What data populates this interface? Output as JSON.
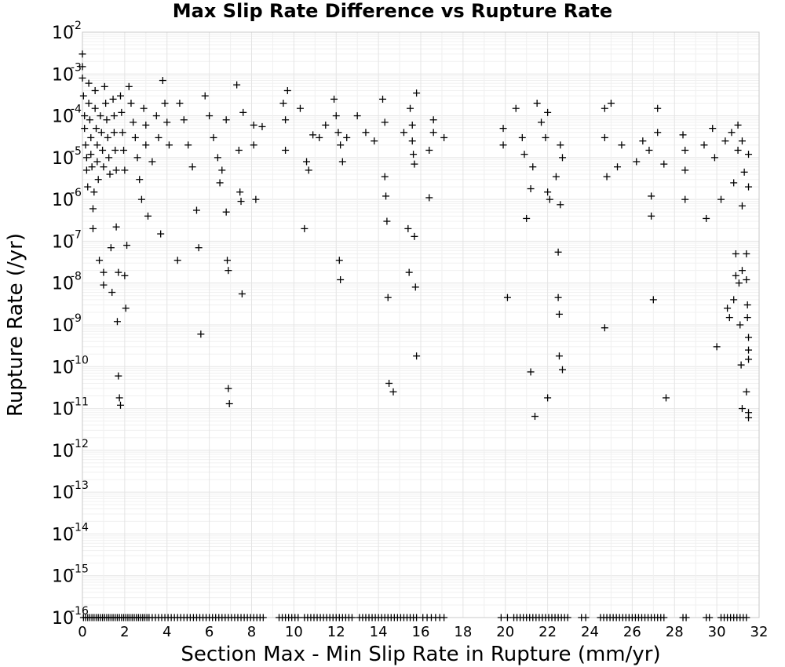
{
  "chart_data": {
    "type": "scatter",
    "title": "Max Slip Rate Difference vs Rupture Rate",
    "xlabel": "Section Max - Min Slip Rate in Rupture (mm/yr)",
    "ylabel": "Rupture Rate (/yr)",
    "xlim": [
      0,
      32
    ],
    "ylim": [
      1e-16,
      0.01
    ],
    "yscale": "log",
    "grid": true,
    "marker": "+",
    "x_ticks": [
      "0",
      "2",
      "4",
      "6",
      "8",
      "10",
      "12",
      "14",
      "16",
      "18",
      "20",
      "22",
      "24",
      "26",
      "28",
      "30",
      "32"
    ],
    "y_ticks": [
      {
        "base": "10",
        "exp": "-2"
      },
      {
        "base": "10",
        "exp": "-3"
      },
      {
        "base": "10",
        "exp": "-4"
      },
      {
        "base": "10",
        "exp": "-5"
      },
      {
        "base": "10",
        "exp": "-6"
      },
      {
        "base": "10",
        "exp": "-7"
      },
      {
        "base": "10",
        "exp": "-8"
      },
      {
        "base": "10",
        "exp": "-9"
      },
      {
        "base": "10",
        "exp": "-10"
      },
      {
        "base": "10",
        "exp": "-11"
      },
      {
        "base": "10",
        "exp": "-12"
      },
      {
        "base": "10",
        "exp": "-13"
      },
      {
        "base": "10",
        "exp": "-14"
      },
      {
        "base": "10",
        "exp": "-15"
      },
      {
        "base": "10",
        "exp": "-16"
      }
    ],
    "points": [
      [
        0.0,
        0.003
      ],
      [
        0.0,
        0.0015
      ],
      [
        0.0,
        0.0008
      ],
      [
        0.05,
        0.0003
      ],
      [
        0.1,
        0.0001
      ],
      [
        0.1,
        5e-05
      ],
      [
        0.15,
        2e-05
      ],
      [
        0.2,
        1e-05
      ],
      [
        0.2,
        5e-06
      ],
      [
        0.25,
        2e-06
      ],
      [
        0.3,
        0.0006
      ],
      [
        0.3,
        0.0002
      ],
      [
        0.35,
        8e-05
      ],
      [
        0.4,
        3e-05
      ],
      [
        0.4,
        1.2e-05
      ],
      [
        0.45,
        6e-06
      ],
      [
        0.5,
        6e-07
      ],
      [
        0.5,
        2e-07
      ],
      [
        0.55,
        1.5e-06
      ],
      [
        0.6,
        0.0004
      ],
      [
        0.6,
        0.00015
      ],
      [
        0.65,
        5e-05
      ],
      [
        0.7,
        2e-05
      ],
      [
        0.7,
        8e-06
      ],
      [
        0.75,
        3e-06
      ],
      [
        0.8,
        3.5e-08
      ],
      [
        0.85,
        0.0001
      ],
      [
        0.9,
        4e-05
      ],
      [
        0.95,
        1.5e-05
      ],
      [
        1.0,
        6e-06
      ],
      [
        1.0,
        1.8e-08
      ],
      [
        1.0,
        9e-09
      ],
      [
        1.05,
        0.0005
      ],
      [
        1.1,
        0.0002
      ],
      [
        1.15,
        8e-05
      ],
      [
        1.2,
        3e-05
      ],
      [
        1.25,
        1e-05
      ],
      [
        1.3,
        4e-06
      ],
      [
        1.35,
        7e-08
      ],
      [
        1.4,
        6e-09
      ],
      [
        1.45,
        0.00025
      ],
      [
        1.5,
        0.0001
      ],
      [
        1.5,
        4e-05
      ],
      [
        1.55,
        1.5e-05
      ],
      [
        1.6,
        5e-06
      ],
      [
        1.6,
        2.2e-07
      ],
      [
        1.65,
        1.2e-09
      ],
      [
        1.7,
        6e-11
      ],
      [
        1.7,
        1.8e-08
      ],
      [
        1.75,
        1.8e-11
      ],
      [
        1.8,
        1.2e-11
      ],
      [
        1.8,
        0.0003
      ],
      [
        1.85,
        0.00012
      ],
      [
        1.9,
        4e-05
      ],
      [
        1.95,
        1.5e-05
      ],
      [
        2.0,
        5e-06
      ],
      [
        2.0,
        1.5e-08
      ],
      [
        2.05,
        2.5e-09
      ],
      [
        2.1,
        8e-08
      ],
      [
        2.2,
        0.0005
      ],
      [
        2.3,
        0.0002
      ],
      [
        2.4,
        7e-05
      ],
      [
        2.5,
        3e-05
      ],
      [
        2.6,
        1e-05
      ],
      [
        2.7,
        3e-06
      ],
      [
        2.8,
        1e-06
      ],
      [
        2.9,
        0.00015
      ],
      [
        3.0,
        6e-05
      ],
      [
        3.0,
        2e-05
      ],
      [
        3.1,
        4e-07
      ],
      [
        3.3,
        8e-06
      ],
      [
        3.5,
        0.0001
      ],
      [
        3.6,
        3e-05
      ],
      [
        3.7,
        1.5e-07
      ],
      [
        3.8,
        0.0007
      ],
      [
        3.9,
        0.0002
      ],
      [
        4.0,
        7e-05
      ],
      [
        4.1,
        2e-05
      ],
      [
        4.5,
        3.5e-08
      ],
      [
        4.6,
        0.0002
      ],
      [
        4.8,
        8e-05
      ],
      [
        5.0,
        2e-05
      ],
      [
        5.2,
        6e-06
      ],
      [
        5.4,
        5.5e-07
      ],
      [
        5.5,
        7e-08
      ],
      [
        5.6,
        6e-10
      ],
      [
        5.8,
        0.0003
      ],
      [
        6.0,
        0.0001
      ],
      [
        6.2,
        3e-05
      ],
      [
        6.4,
        1e-05
      ],
      [
        6.5,
        2.5e-06
      ],
      [
        6.6,
        5e-06
      ],
      [
        6.8,
        8e-05
      ],
      [
        6.8,
        5e-07
      ],
      [
        6.85,
        3.5e-08
      ],
      [
        6.9,
        2e-08
      ],
      [
        6.9,
        3e-11
      ],
      [
        6.95,
        1.3e-11
      ],
      [
        7.3,
        0.00055
      ],
      [
        7.4,
        1.5e-05
      ],
      [
        7.45,
        1.5e-06
      ],
      [
        7.5,
        9e-07
      ],
      [
        7.55,
        5.5e-09
      ],
      [
        7.6,
        0.00012
      ],
      [
        8.1,
        6e-05
      ],
      [
        8.1,
        2e-05
      ],
      [
        8.2,
        1e-06
      ],
      [
        8.5,
        5.5e-05
      ],
      [
        9.5,
        0.0002
      ],
      [
        9.6,
        8e-05
      ],
      [
        9.6,
        1.5e-05
      ],
      [
        9.7,
        0.0004
      ],
      [
        10.3,
        0.00015
      ],
      [
        10.5,
        2e-07
      ],
      [
        10.6,
        8e-06
      ],
      [
        10.7,
        5e-06
      ],
      [
        10.9,
        3.5e-05
      ],
      [
        11.2,
        3e-05
      ],
      [
        11.5,
        6e-05
      ],
      [
        11.9,
        0.00025
      ],
      [
        12.0,
        0.0001
      ],
      [
        12.1,
        4e-05
      ],
      [
        12.2,
        2e-05
      ],
      [
        12.15,
        3.5e-08
      ],
      [
        12.2,
        1.2e-08
      ],
      [
        12.3,
        8e-06
      ],
      [
        12.5,
        3e-05
      ],
      [
        13.0,
        0.0001
      ],
      [
        13.4,
        4e-05
      ],
      [
        13.8,
        2.5e-05
      ],
      [
        14.2,
        0.00025
      ],
      [
        14.3,
        7e-05
      ],
      [
        14.3,
        3.5e-06
      ],
      [
        14.35,
        1.2e-06
      ],
      [
        14.4,
        3e-07
      ],
      [
        14.45,
        4.5e-09
      ],
      [
        14.5,
        4e-11
      ],
      [
        14.7,
        2.5e-11
      ],
      [
        15.2,
        4e-05
      ],
      [
        15.4,
        2e-07
      ],
      [
        15.45,
        1.8e-08
      ],
      [
        15.5,
        0.00015
      ],
      [
        15.6,
        6e-05
      ],
      [
        15.6,
        2.5e-05
      ],
      [
        15.65,
        1.2e-05
      ],
      [
        15.7,
        7e-06
      ],
      [
        15.7,
        1.3e-07
      ],
      [
        15.75,
        8e-09
      ],
      [
        15.8,
        1.8e-10
      ],
      [
        15.8,
        0.00035
      ],
      [
        16.4,
        1.5e-05
      ],
      [
        16.4,
        1.1e-06
      ],
      [
        16.6,
        8e-05
      ],
      [
        16.6,
        4e-05
      ],
      [
        17.1,
        3e-05
      ],
      [
        19.9,
        5e-05
      ],
      [
        19.9,
        2e-05
      ],
      [
        20.1,
        4.5e-09
      ],
      [
        20.5,
        0.00015
      ],
      [
        20.8,
        3e-05
      ],
      [
        20.9,
        1.2e-05
      ],
      [
        21.0,
        3.5e-07
      ],
      [
        21.2,
        1.8e-06
      ],
      [
        21.2,
        7.5e-11
      ],
      [
        21.3,
        6e-06
      ],
      [
        21.4,
        6.5e-12
      ],
      [
        21.5,
        0.0002
      ],
      [
        21.7,
        7e-05
      ],
      [
        21.9,
        3e-05
      ],
      [
        22.0,
        0.00012
      ],
      [
        22.0,
        1.5e-06
      ],
      [
        22.0,
        1.8e-11
      ],
      [
        22.1,
        1e-06
      ],
      [
        22.4,
        3.5e-06
      ],
      [
        22.5,
        5.5e-08
      ],
      [
        22.5,
        4.5e-09
      ],
      [
        22.55,
        1.8e-09
      ],
      [
        22.55,
        1.8e-10
      ],
      [
        22.6,
        2e-05
      ],
      [
        22.7,
        8.5e-11
      ],
      [
        22.6,
        7.5e-07
      ],
      [
        22.7,
        1e-05
      ],
      [
        24.7,
        0.00015
      ],
      [
        24.7,
        3e-05
      ],
      [
        24.7,
        8.5e-10
      ],
      [
        24.8,
        3.5e-06
      ],
      [
        25.0,
        0.0002
      ],
      [
        25.3,
        6e-06
      ],
      [
        25.5,
        2e-05
      ],
      [
        26.2,
        8e-06
      ],
      [
        26.5,
        2.5e-05
      ],
      [
        26.8,
        1.5e-05
      ],
      [
        26.9,
        4e-07
      ],
      [
        26.9,
        1.2e-06
      ],
      [
        27.0,
        4e-09
      ],
      [
        27.2,
        0.00015
      ],
      [
        27.2,
        4e-05
      ],
      [
        27.5,
        7e-06
      ],
      [
        27.6,
        1.8e-11
      ],
      [
        28.4,
        3.5e-05
      ],
      [
        28.5,
        1.5e-05
      ],
      [
        28.5,
        1e-06
      ],
      [
        28.5,
        5e-06
      ],
      [
        29.4,
        2e-05
      ],
      [
        29.5,
        3.5e-07
      ],
      [
        29.8,
        5e-05
      ],
      [
        29.9,
        1e-05
      ],
      [
        30.0,
        3e-10
      ],
      [
        30.2,
        1e-06
      ],
      [
        30.4,
        2.5e-05
      ],
      [
        30.5,
        2.5e-09
      ],
      [
        30.6,
        1.5e-09
      ],
      [
        30.7,
        4e-05
      ],
      [
        30.8,
        2.5e-06
      ],
      [
        30.8,
        4e-09
      ],
      [
        30.9,
        1.5e-08
      ],
      [
        30.9,
        5e-08
      ],
      [
        31.0,
        6e-05
      ],
      [
        31.0,
        1.5e-05
      ],
      [
        31.05,
        1e-08
      ],
      [
        31.1,
        1e-09
      ],
      [
        31.15,
        1.1e-10
      ],
      [
        31.2,
        2e-08
      ],
      [
        31.2,
        7e-07
      ],
      [
        31.2,
        2.5e-05
      ],
      [
        31.2,
        1e-11
      ],
      [
        31.3,
        4.5e-06
      ],
      [
        31.4,
        5e-08
      ],
      [
        31.4,
        1.2e-08
      ],
      [
        31.4,
        2.5e-11
      ],
      [
        31.45,
        3e-09
      ],
      [
        31.45,
        1.5e-09
      ],
      [
        31.5,
        5e-10
      ],
      [
        31.5,
        2.5e-10
      ],
      [
        31.5,
        1.5e-10
      ],
      [
        31.5,
        8e-12
      ],
      [
        31.5,
        6e-12
      ],
      [
        31.5,
        2e-06
      ],
      [
        31.5,
        1.2e-05
      ]
    ],
    "floor_points_x": [
      0.05,
      0.15,
      0.25,
      0.35,
      0.45,
      0.55,
      0.65,
      0.75,
      0.85,
      0.95,
      1.05,
      1.15,
      1.25,
      1.35,
      1.45,
      1.55,
      1.65,
      1.75,
      1.85,
      1.95,
      2.05,
      2.15,
      2.25,
      2.35,
      2.45,
      2.55,
      2.65,
      2.75,
      2.85,
      2.95,
      3.05,
      3.15,
      3.3,
      3.45,
      3.6,
      3.75,
      3.9,
      4.05,
      4.2,
      4.35,
      4.5,
      4.65,
      4.8,
      4.95,
      5.1,
      5.25,
      5.4,
      5.55,
      5.7,
      5.85,
      6.0,
      6.15,
      6.3,
      6.45,
      6.6,
      6.75,
      6.9,
      7.05,
      7.2,
      7.35,
      7.5,
      7.65,
      7.8,
      7.95,
      8.1,
      8.25,
      8.4,
      8.55,
      9.3,
      9.45,
      9.6,
      9.75,
      9.9,
      10.05,
      10.2,
      10.5,
      10.65,
      10.8,
      10.95,
      11.1,
      11.25,
      11.4,
      11.55,
      11.7,
      11.85,
      12.0,
      12.15,
      12.3,
      12.45,
      12.6,
      12.75,
      13.1,
      13.25,
      13.4,
      13.55,
      13.7,
      13.85,
      14.0,
      14.15,
      14.3,
      14.45,
      14.6,
      14.75,
      14.9,
      15.05,
      15.2,
      15.35,
      15.5,
      15.65,
      15.8,
      16.1,
      16.3,
      16.5,
      16.7,
      16.9,
      17.1,
      19.8,
      20.1,
      20.4,
      20.55,
      20.7,
      20.85,
      21.0,
      21.15,
      21.3,
      21.45,
      21.6,
      21.75,
      21.9,
      22.05,
      22.2,
      22.35,
      22.5,
      22.65,
      22.8,
      22.95,
      23.6,
      23.8,
      24.5,
      24.65,
      24.8,
      24.95,
      25.1,
      25.25,
      25.4,
      25.55,
      25.7,
      25.85,
      26.0,
      26.15,
      26.3,
      26.45,
      26.6,
      26.75,
      26.9,
      27.05,
      27.2,
      27.35,
      27.5,
      28.4,
      28.55,
      29.5,
      29.65,
      30.2,
      30.35,
      30.5,
      30.65,
      30.8,
      30.95,
      31.1,
      31.25,
      31.4
    ]
  }
}
